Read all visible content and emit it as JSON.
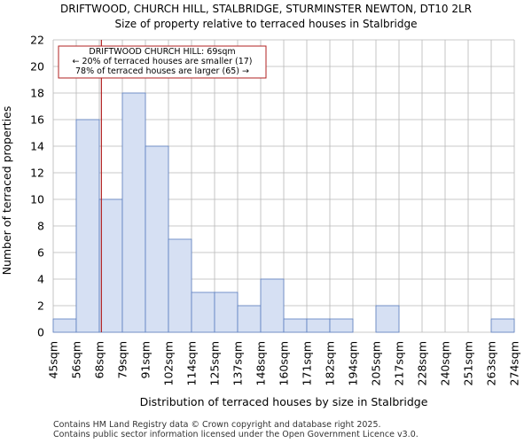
{
  "chart_data": {
    "type": "bar",
    "title": "DRIFTWOOD, CHURCH HILL, STALBRIDGE, STURMINSTER NEWTON, DT10 2LR",
    "subtitle": "Size of property relative to terraced houses in Stalbridge",
    "xlabel": "Distribution of terraced houses by size in Stalbridge",
    "ylabel": "Number of terraced properties",
    "ylim": [
      0,
      22
    ],
    "yticks": [
      0,
      2,
      4,
      6,
      8,
      10,
      12,
      14,
      16,
      18,
      20,
      22
    ],
    "grid": true,
    "bin_edges": [
      "45sqm",
      "56sqm",
      "68sqm",
      "79sqm",
      "91sqm",
      "102sqm",
      "114sqm",
      "125sqm",
      "137sqm",
      "148sqm",
      "160sqm",
      "171sqm",
      "182sqm",
      "194sqm",
      "205sqm",
      "217sqm",
      "228sqm",
      "240sqm",
      "251sqm",
      "263sqm",
      "274sqm"
    ],
    "values": [
      1,
      16,
      10,
      18,
      14,
      7,
      3,
      3,
      2,
      4,
      1,
      1,
      1,
      0,
      2,
      0,
      0,
      0,
      0,
      1
    ],
    "marker": {
      "value_sqm": 69,
      "color": "#b22222",
      "annotation": [
        "DRIFTWOOD CHURCH HILL: 69sqm",
        "← 20% of terraced houses are smaller (17)",
        "78% of terraced houses are larger (65) →"
      ]
    },
    "colors": {
      "bar_fill": "#d6e0f3",
      "bar_edge": "#5b7ec0",
      "marker": "#b22222"
    }
  },
  "footer": {
    "line1": "Contains HM Land Registry data © Crown copyright and database right 2025.",
    "line2": "Contains public sector information licensed under the Open Government Licence v3.0."
  }
}
